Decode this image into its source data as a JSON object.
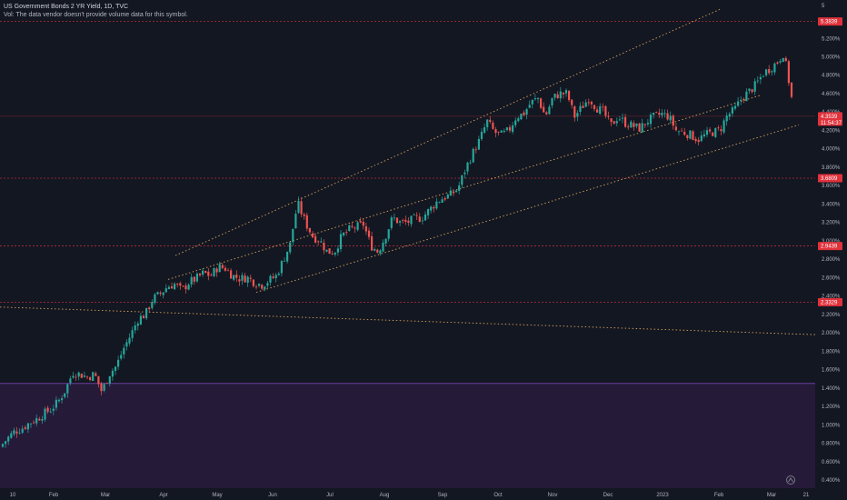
{
  "header": {
    "title": "US Government Bonds 2 YR Yield, 1D, TVC",
    "volume_note": "Vol: The data vendor doesn't provide volume data for this symbol."
  },
  "colors": {
    "background": "#131722",
    "up": "#26a69a",
    "down": "#ef5350",
    "zone": "#2a1b3d",
    "level_line": "#e0323c",
    "trend_line": "#d4a15a",
    "axis_text": "#b2b5be"
  },
  "badges": {
    "top_level": "5.3839",
    "last_price": "4.3539",
    "countdown": "11:54:37",
    "mid_level": "3.6809",
    "low_level1": "2.9439",
    "low_level2": "2.3329"
  },
  "watermark_icon": "tradingview-logo-icon",
  "chart_data": {
    "type": "candlestick",
    "title": "US Government Bonds 2 YR Yield, 1D, TVC",
    "y_axis_label": "",
    "ylim": [
      0.35,
      5.6
    ],
    "yticks": [
      "5.400%",
      "5.200%",
      "5.000%",
      "4.800%",
      "4.600%",
      "4.400%",
      "4.200%",
      "4.000%",
      "3.800%",
      "3.600%",
      "3.400%",
      "3.200%",
      "3.000%",
      "2.800%",
      "2.600%",
      "2.400%",
      "2.200%",
      "2.000%",
      "1.800%",
      "1.600%",
      "1.400%",
      "1.200%",
      "1.000%",
      "0.800%",
      "0.600%",
      "0.400%"
    ],
    "ytick_values": [
      5.4,
      5.2,
      5.0,
      4.8,
      4.6,
      4.4,
      4.2,
      4.0,
      3.8,
      3.6,
      3.4,
      3.2,
      3.0,
      2.8,
      2.6,
      2.4,
      2.2,
      2.0,
      1.8,
      1.6,
      1.4,
      1.2,
      1.0,
      0.8,
      0.6,
      0.4
    ],
    "top_scale_label": "5",
    "xticks": [
      "10",
      "Feb",
      "Mar",
      "Apr",
      "May",
      "Jun",
      "Jul",
      "Aug",
      "Sep",
      "Oct",
      "Nov",
      "Dec",
      "2023",
      "Feb",
      "Mar",
      "21"
    ],
    "close_path": [
      [
        0,
        0.76
      ],
      [
        8,
        0.85
      ],
      [
        16,
        0.93
      ],
      [
        24,
        0.96
      ],
      [
        32,
        1.02
      ],
      [
        40,
        1.06
      ],
      [
        48,
        1.12
      ],
      [
        56,
        1.17
      ],
      [
        64,
        1.25
      ],
      [
        72,
        1.38
      ],
      [
        80,
        1.57
      ],
      [
        88,
        1.55
      ],
      [
        96,
        1.52
      ],
      [
        104,
        1.55
      ],
      [
        112,
        1.36
      ],
      [
        120,
        1.55
      ],
      [
        128,
        1.64
      ],
      [
        136,
        1.83
      ],
      [
        144,
        1.98
      ],
      [
        152,
        2.15
      ],
      [
        160,
        2.2
      ],
      [
        168,
        2.37
      ],
      [
        176,
        2.42
      ],
      [
        184,
        2.5
      ],
      [
        192,
        2.53
      ],
      [
        200,
        2.46
      ],
      [
        208,
        2.55
      ],
      [
        216,
        2.59
      ],
      [
        224,
        2.65
      ],
      [
        232,
        2.62
      ],
      [
        240,
        2.72
      ],
      [
        248,
        2.7
      ],
      [
        256,
        2.62
      ],
      [
        264,
        2.59
      ],
      [
        272,
        2.6
      ],
      [
        280,
        2.55
      ],
      [
        288,
        2.52
      ],
      [
        296,
        2.57
      ],
      [
        304,
        2.62
      ],
      [
        312,
        2.8
      ],
      [
        320,
        2.98
      ],
      [
        324,
        3.25
      ],
      [
        328,
        3.4
      ],
      [
        336,
        3.2
      ],
      [
        344,
        3.05
      ],
      [
        352,
        3.0
      ],
      [
        360,
        2.88
      ],
      [
        368,
        2.88
      ],
      [
        376,
        3.05
      ],
      [
        384,
        3.12
      ],
      [
        392,
        3.15
      ],
      [
        400,
        3.18
      ],
      [
        408,
        2.95
      ],
      [
        416,
        2.88
      ],
      [
        424,
        3.05
      ],
      [
        432,
        3.25
      ],
      [
        440,
        3.2
      ],
      [
        448,
        3.2
      ],
      [
        456,
        3.24
      ],
      [
        464,
        3.25
      ],
      [
        472,
        3.33
      ],
      [
        480,
        3.42
      ],
      [
        488,
        3.47
      ],
      [
        496,
        3.5
      ],
      [
        504,
        3.57
      ],
      [
        512,
        3.78
      ],
      [
        520,
        3.95
      ],
      [
        528,
        4.1
      ],
      [
        536,
        4.3
      ],
      [
        544,
        4.18
      ],
      [
        552,
        4.15
      ],
      [
        560,
        4.2
      ],
      [
        568,
        4.35
      ],
      [
        576,
        4.38
      ],
      [
        584,
        4.5
      ],
      [
        592,
        4.55
      ],
      [
        600,
        4.35
      ],
      [
        608,
        4.55
      ],
      [
        616,
        4.6
      ],
      [
        624,
        4.6
      ],
      [
        632,
        4.35
      ],
      [
        640,
        4.45
      ],
      [
        648,
        4.55
      ],
      [
        656,
        4.45
      ],
      [
        664,
        4.4
      ],
      [
        672,
        4.25
      ],
      [
        680,
        4.35
      ],
      [
        688,
        4.28
      ],
      [
        696,
        4.25
      ],
      [
        704,
        4.22
      ],
      [
        712,
        4.3
      ],
      [
        720,
        4.35
      ],
      [
        728,
        4.38
      ],
      [
        736,
        4.35
      ],
      [
        744,
        4.2
      ],
      [
        752,
        4.18
      ],
      [
        760,
        4.15
      ],
      [
        768,
        4.1
      ],
      [
        776,
        4.15
      ],
      [
        784,
        4.18
      ],
      [
        792,
        4.2
      ],
      [
        800,
        4.36
      ],
      [
        808,
        4.42
      ],
      [
        816,
        4.55
      ],
      [
        824,
        4.62
      ],
      [
        832,
        4.7
      ],
      [
        840,
        4.82
      ],
      [
        848,
        4.88
      ],
      [
        856,
        4.95
      ],
      [
        862,
        5.04
      ],
      [
        866,
        4.85
      ],
      [
        870,
        4.62
      ],
      [
        874,
        4.35
      ]
    ],
    "series": [
      {
        "kind": "support_resistance",
        "values": [
          5.3839,
          3.6809,
          2.9439,
          2.3329,
          4.3539
        ]
      },
      {
        "kind": "trend_channel_lines",
        "count": 4
      },
      {
        "kind": "shaded_zone",
        "from": 0.35,
        "to": 1.45
      }
    ],
    "grid": false,
    "legend": "none"
  }
}
